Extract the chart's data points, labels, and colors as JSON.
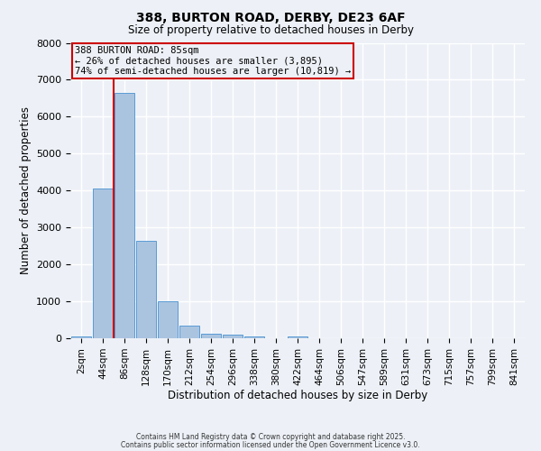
{
  "title1": "388, BURTON ROAD, DERBY, DE23 6AF",
  "title2": "Size of property relative to detached houses in Derby",
  "xlabel": "Distribution of detached houses by size in Derby",
  "ylabel": "Number of detached properties",
  "categories": [
    "2sqm",
    "44sqm",
    "86sqm",
    "128sqm",
    "170sqm",
    "212sqm",
    "254sqm",
    "296sqm",
    "338sqm",
    "380sqm",
    "422sqm",
    "464sqm",
    "506sqm",
    "547sqm",
    "589sqm",
    "631sqm",
    "673sqm",
    "715sqm",
    "757sqm",
    "799sqm",
    "841sqm"
  ],
  "values": [
    60,
    4050,
    6650,
    2650,
    1000,
    330,
    130,
    100,
    60,
    0,
    50,
    0,
    0,
    0,
    0,
    0,
    0,
    0,
    0,
    0,
    0
  ],
  "bar_color": "#aac4e0",
  "bar_edge_color": "#5a9bd5",
  "annotation_title": "388 BURTON ROAD: 85sqm",
  "annotation_line1": "← 26% of detached houses are smaller (3,895)",
  "annotation_line2": "74% of semi-detached houses are larger (10,819) →",
  "annotation_box_color": "#cc0000",
  "ylim": [
    0,
    8000
  ],
  "background_color": "#edf1f7",
  "grid_color": "#ffffff",
  "footnote1": "Contains HM Land Registry data © Crown copyright and database right 2025.",
  "footnote2": "Contains public sector information licensed under the Open Government Licence v3.0."
}
